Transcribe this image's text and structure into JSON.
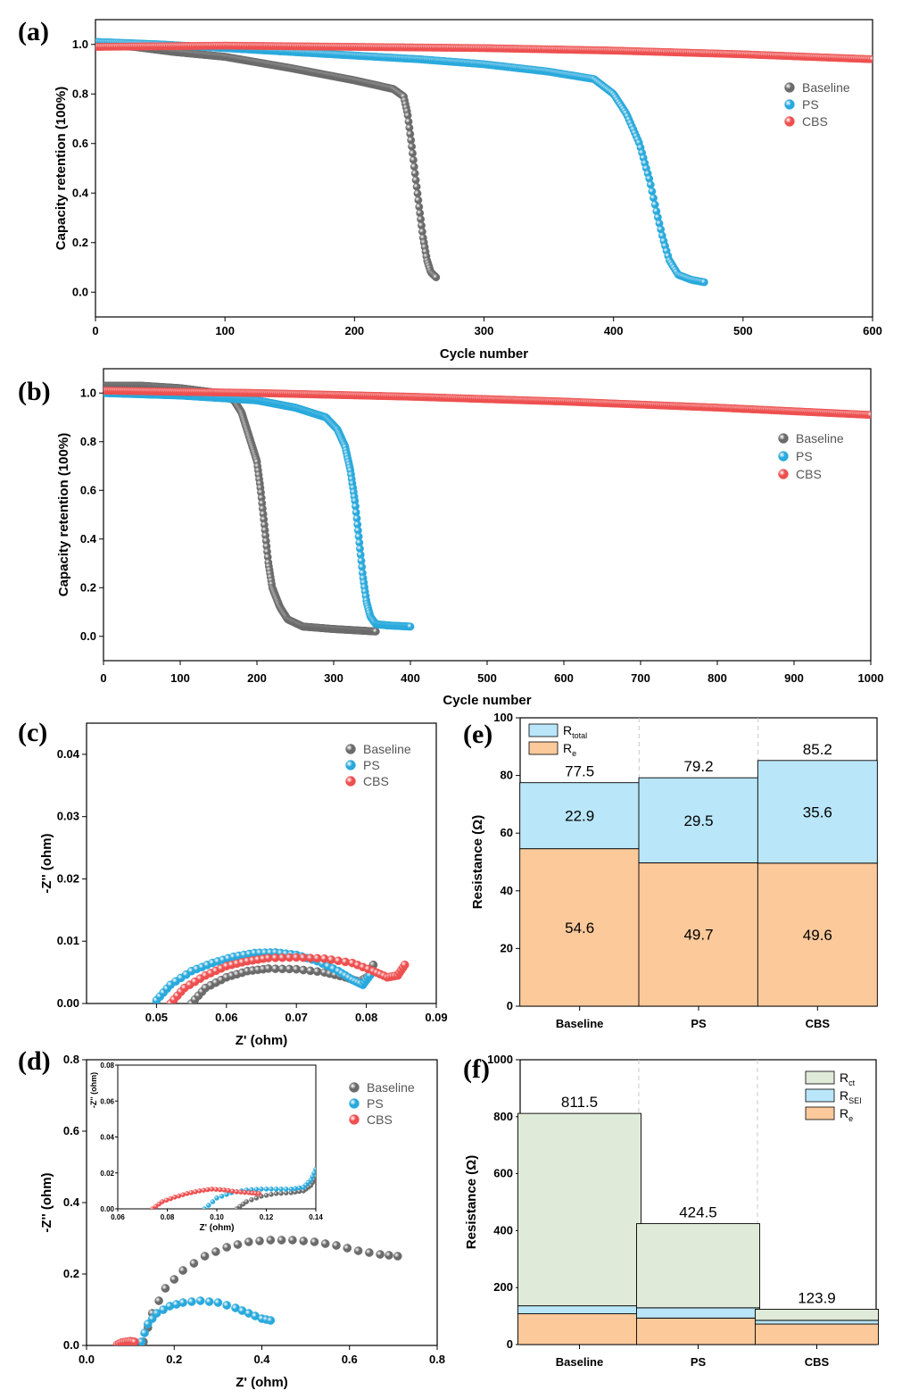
{
  "colors": {
    "Baseline": "#6b6b6b",
    "PS": "#29a9dc",
    "CBS": "#ee4f4f",
    "R_e": "#fcc99b",
    "R_total": "#b9e6f8",
    "R_SEI": "#b9e6f8",
    "R_ct": "#e0ead8"
  },
  "chart_data": [
    {
      "id": "a",
      "panel_label": "(a)",
      "type": "scatter",
      "xlabel": "Cycle number",
      "ylabel": "Capacity retention (100%)",
      "xlim": [
        0,
        600
      ],
      "ylim": [
        -0.1,
        1.1
      ],
      "xticks": [
        "0",
        "100",
        "200",
        "300",
        "400",
        "500",
        "600"
      ],
      "yticks": [
        "0.0",
        "0.2",
        "0.4",
        "0.6",
        "0.8",
        "1.0"
      ],
      "legend": [
        "Baseline",
        "PS",
        "CBS"
      ],
      "legend_position": "top-right",
      "series": [
        {
          "name": "Baseline",
          "x": [
            1,
            30,
            60,
            100,
            150,
            200,
            230,
            238,
            241,
            244,
            247,
            250,
            253,
            256,
            259,
            263
          ],
          "y": [
            1.0,
            0.99,
            0.97,
            0.95,
            0.905,
            0.855,
            0.82,
            0.79,
            0.72,
            0.6,
            0.47,
            0.34,
            0.22,
            0.13,
            0.08,
            0.06
          ]
        },
        {
          "name": "PS",
          "x": [
            1,
            50,
            100,
            150,
            200,
            250,
            300,
            350,
            385,
            400,
            410,
            420,
            428,
            433,
            438,
            443,
            450,
            460,
            470
          ],
          "y": [
            1.01,
            1.0,
            0.985,
            0.97,
            0.955,
            0.94,
            0.92,
            0.89,
            0.86,
            0.8,
            0.72,
            0.6,
            0.45,
            0.33,
            0.22,
            0.13,
            0.07,
            0.05,
            0.04
          ]
        },
        {
          "name": "CBS",
          "x": [
            1,
            100,
            200,
            300,
            400,
            500,
            600
          ],
          "y": [
            0.99,
            0.995,
            0.99,
            0.985,
            0.975,
            0.96,
            0.94
          ]
        }
      ]
    },
    {
      "id": "b",
      "panel_label": "(b)",
      "type": "scatter",
      "xlabel": "Cycle number",
      "ylabel": "Capacity retention (100%)",
      "xlim": [
        0,
        1000
      ],
      "ylim": [
        -0.1,
        1.1
      ],
      "xticks": [
        "0",
        "100",
        "200",
        "300",
        "400",
        "500",
        "600",
        "700",
        "800",
        "900",
        "1000"
      ],
      "yticks": [
        "0.0",
        "0.2",
        "0.4",
        "0.6",
        "0.8",
        "1.0"
      ],
      "legend": [
        "Baseline",
        "PS",
        "CBS"
      ],
      "legend_position": "right",
      "series": [
        {
          "name": "Baseline",
          "x": [
            1,
            50,
            100,
            150,
            170,
            180,
            190,
            200,
            205,
            210,
            215,
            220,
            230,
            240,
            260,
            300,
            355
          ],
          "y": [
            1.03,
            1.03,
            1.02,
            1.0,
            0.97,
            0.92,
            0.82,
            0.72,
            0.6,
            0.45,
            0.3,
            0.2,
            0.12,
            0.07,
            0.04,
            0.03,
            0.02
          ]
        },
        {
          "name": "PS",
          "x": [
            1,
            100,
            200,
            250,
            290,
            305,
            315,
            322,
            328,
            333,
            338,
            343,
            348,
            355,
            370,
            400
          ],
          "y": [
            1.0,
            0.99,
            0.97,
            0.94,
            0.9,
            0.85,
            0.78,
            0.68,
            0.55,
            0.4,
            0.25,
            0.14,
            0.08,
            0.05,
            0.045,
            0.04
          ]
        },
        {
          "name": "CBS",
          "x": [
            1,
            200,
            400,
            600,
            800,
            1000
          ],
          "y": [
            1.01,
            1.0,
            0.985,
            0.965,
            0.94,
            0.91
          ]
        }
      ]
    },
    {
      "id": "c",
      "panel_label": "(c)",
      "type": "scatter",
      "xlabel": "Z' (ohm)",
      "ylabel": "-Z'' (ohm)",
      "xlim": [
        0.04,
        0.09
      ],
      "ylim": [
        0,
        0.045
      ],
      "xticks": [
        "0.05",
        "0.06",
        "0.07",
        "0.08",
        "0.09"
      ],
      "yticks": [
        "0.00",
        "0.01",
        "0.02",
        "0.03",
        "0.04"
      ],
      "legend": [
        "Baseline",
        "PS",
        "CBS"
      ],
      "legend_position": "top-right",
      "series": [
        {
          "name": "Baseline",
          "x": [
            0.055,
            0.057,
            0.06,
            0.063,
            0.066,
            0.07,
            0.074,
            0.077,
            0.079,
            0.0805,
            0.081
          ],
          "y": [
            0.0,
            0.0025,
            0.0042,
            0.0052,
            0.0056,
            0.0055,
            0.005,
            0.0042,
            0.0035,
            0.0045,
            0.0062
          ]
        },
        {
          "name": "PS",
          "x": [
            0.05,
            0.052,
            0.055,
            0.058,
            0.061,
            0.064,
            0.067,
            0.07,
            0.073,
            0.076,
            0.078,
            0.0795,
            0.0805
          ],
          "y": [
            0.0005,
            0.003,
            0.0052,
            0.0065,
            0.0075,
            0.0081,
            0.0082,
            0.0078,
            0.0068,
            0.0052,
            0.0038,
            0.003,
            0.0045
          ]
        },
        {
          "name": "CBS",
          "x": [
            0.052,
            0.054,
            0.057,
            0.06,
            0.063,
            0.066,
            0.07,
            0.074,
            0.078,
            0.081,
            0.083,
            0.0845,
            0.0855
          ],
          "y": [
            0.0,
            0.0025,
            0.0045,
            0.006,
            0.0068,
            0.0073,
            0.0074,
            0.0072,
            0.0065,
            0.0052,
            0.0042,
            0.0045,
            0.0062
          ]
        }
      ]
    },
    {
      "id": "d",
      "panel_label": "(d)",
      "type": "scatter",
      "xlabel": "Z' (ohm)",
      "ylabel": "-Z'' (ohm)",
      "xlim": [
        0,
        0.8
      ],
      "ylim": [
        0,
        0.8
      ],
      "xticks": [
        "0.0",
        "0.2",
        "0.4",
        "0.6",
        "0.8"
      ],
      "yticks": [
        "0.0",
        "0.2",
        "0.4",
        "0.6",
        "0.8"
      ],
      "legend": [
        "Baseline",
        "PS",
        "CBS"
      ],
      "legend_position": "top-right",
      "series": [
        {
          "name": "Baseline",
          "x": [
            0.13,
            0.15,
            0.18,
            0.22,
            0.27,
            0.32,
            0.37,
            0.42,
            0.47,
            0.52,
            0.57,
            0.62,
            0.67,
            0.71
          ],
          "y": [
            0.01,
            0.09,
            0.16,
            0.21,
            0.25,
            0.275,
            0.29,
            0.295,
            0.295,
            0.29,
            0.28,
            0.265,
            0.255,
            0.25
          ]
        },
        {
          "name": "PS",
          "x": [
            0.125,
            0.14,
            0.16,
            0.19,
            0.22,
            0.26,
            0.3,
            0.34,
            0.37,
            0.4,
            0.42
          ],
          "y": [
            0.01,
            0.06,
            0.09,
            0.11,
            0.12,
            0.125,
            0.12,
            0.105,
            0.09,
            0.075,
            0.07
          ]
        },
        {
          "name": "CBS",
          "x": [
            0.07,
            0.08,
            0.09,
            0.1,
            0.11
          ],
          "y": [
            0.002,
            0.008,
            0.01,
            0.012,
            0.01
          ]
        }
      ],
      "inset": {
        "xlabel": "Z' (ohm)",
        "ylabel": "-Z'' (ohm)",
        "xlim": [
          0.06,
          0.14
        ],
        "ylim": [
          0,
          0.08
        ],
        "xticks": [
          "0.06",
          "0.08",
          "0.10",
          "0.12",
          "0.14"
        ],
        "yticks": [
          "0.00",
          "0.02",
          "0.04",
          "0.06",
          "0.08"
        ],
        "series": [
          {
            "name": "Baseline",
            "x": [
              0.108,
              0.112,
              0.118,
              0.124,
              0.13,
              0.135,
              0.138,
              0.14
            ],
            "y": [
              0.0,
              0.004,
              0.007,
              0.0085,
              0.009,
              0.01,
              0.013,
              0.018
            ]
          },
          {
            "name": "PS",
            "x": [
              0.095,
              0.1,
              0.106,
              0.112,
              0.118,
              0.124,
              0.13,
              0.135,
              0.138,
              0.14
            ],
            "y": [
              0.0,
              0.006,
              0.009,
              0.0105,
              0.011,
              0.011,
              0.011,
              0.012,
              0.016,
              0.022
            ]
          },
          {
            "name": "CBS",
            "x": [
              0.074,
              0.078,
              0.083,
              0.088,
              0.093,
              0.098,
              0.103,
              0.108,
              0.113,
              0.117
            ],
            "y": [
              0.0,
              0.004,
              0.0065,
              0.0085,
              0.01,
              0.011,
              0.0105,
              0.0095,
              0.009,
              0.0085
            ]
          }
        ]
      }
    },
    {
      "id": "e",
      "panel_label": "(e)",
      "type": "bar",
      "xlabel": "",
      "ylabel": "Resistance (Ω)",
      "ylim": [
        0,
        100
      ],
      "yticks": [
        "0",
        "20",
        "40",
        "60",
        "80",
        "100"
      ],
      "categories": [
        "Baseline",
        "PS",
        "CBS"
      ],
      "legend": [
        "R_total",
        "R_e"
      ],
      "legend_position": "top-left",
      "series": [
        {
          "name": "R_e",
          "values": [
            54.6,
            49.7,
            49.6
          ],
          "labels": [
            "54.6",
            "49.7",
            "49.6"
          ]
        },
        {
          "name": "R_total",
          "values": [
            22.9,
            29.5,
            35.6
          ],
          "labels": [
            "22.9",
            "29.5",
            "35.6"
          ]
        }
      ],
      "totals": [
        "77.5",
        "79.2",
        "85.2"
      ]
    },
    {
      "id": "f",
      "panel_label": "(f)",
      "type": "bar",
      "xlabel": "",
      "ylabel": "Resistance (Ω)",
      "ylim": [
        0,
        1000
      ],
      "yticks": [
        "0",
        "200",
        "400",
        "600",
        "800",
        "1000"
      ],
      "categories": [
        "Baseline",
        "PS",
        "CBS"
      ],
      "legend": [
        "R_ct",
        "R_SEI",
        "R_e"
      ],
      "legend_position": "top-right",
      "series": [
        {
          "name": "R_e",
          "values": [
            108,
            93,
            72
          ]
        },
        {
          "name": "R_SEI",
          "values": [
            28,
            36,
            13
          ]
        },
        {
          "name": "R_ct",
          "values": [
            675.5,
            295.5,
            38.9
          ]
        }
      ],
      "totals": [
        "811.5",
        "424.5",
        "123.9"
      ]
    }
  ],
  "legend_text": {
    "R_e": {
      "main": "R",
      "sub": "e"
    },
    "R_total": {
      "main": "R",
      "sub": "total"
    },
    "R_SEI": {
      "main": "R",
      "sub": "SEI"
    },
    "R_ct": {
      "main": "R",
      "sub": "ct"
    }
  }
}
